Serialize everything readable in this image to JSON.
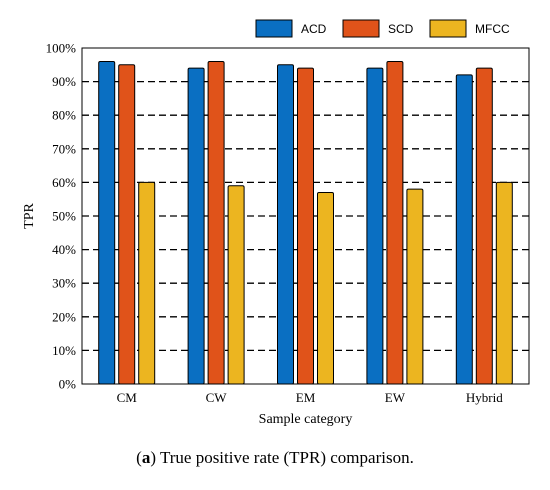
{
  "caption": {
    "label": "a",
    "text": "True positive rate (TPR) comparison."
  },
  "chart_data": {
    "type": "bar",
    "title": "",
    "xlabel": "Sample category",
    "ylabel": "TPR",
    "categories": [
      "CM",
      "CW",
      "EM",
      "EW",
      "Hybrid"
    ],
    "series": [
      {
        "name": "ACD",
        "color": "#0a6fc2",
        "values": [
          96,
          94,
          95,
          94,
          92
        ]
      },
      {
        "name": "SCD",
        "color": "#e0531a",
        "values": [
          95,
          96,
          94,
          96,
          94
        ]
      },
      {
        "name": "MFCC",
        "color": "#ecb520",
        "values": [
          60,
          59,
          57,
          58,
          60
        ]
      }
    ],
    "ylim": [
      0,
      100
    ],
    "yticks": [
      0,
      10,
      20,
      30,
      40,
      50,
      60,
      70,
      80,
      90,
      100
    ],
    "ytick_labels": [
      "0%",
      "10%",
      "20%",
      "30%",
      "40%",
      "50%",
      "60%",
      "70%",
      "80%",
      "90%",
      "100%"
    ],
    "grid": "horizontal dashed",
    "legend_position": "top-right"
  }
}
